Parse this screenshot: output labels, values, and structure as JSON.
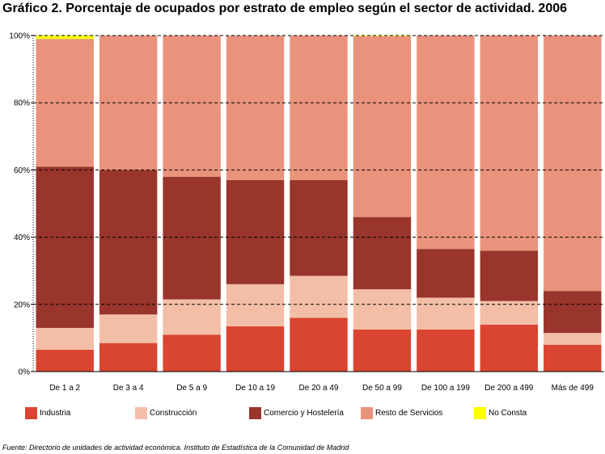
{
  "title": "Gráfico 2. Porcentaje de ocupados por estrato de empleo según el sector de actividad. 2006",
  "source": "Fuente: Directorio de unidades de actividad económica. Instituto de Estadística de la Comunidad de Madrid",
  "chart_data": {
    "type": "bar",
    "stacked": true,
    "percent": true,
    "categories": [
      "De 1 a 2",
      "De 3 a 4",
      "De 5 a 9",
      "De 10 a 19",
      "De 20 a 49",
      "De 50 a 99",
      "De 100 a 199",
      "De 200 a 499",
      "Más de 499"
    ],
    "series": [
      {
        "name": "Industria",
        "color": "#d94530",
        "values": [
          6.5,
          8.5,
          11,
          13.5,
          16,
          12.5,
          12.5,
          14,
          8
        ]
      },
      {
        "name": "Construcción",
        "color": "#f3bea7",
        "values": [
          6.5,
          8.5,
          10.5,
          12.5,
          12.5,
          12,
          9.5,
          7,
          3.5
        ]
      },
      {
        "name": "Comercio y Hostelería",
        "color": "#99352b",
        "values": [
          48,
          43,
          36.5,
          31,
          28.5,
          21.5,
          14.5,
          15,
          12.5
        ]
      },
      {
        "name": "Resto de Servicios",
        "color": "#e9937c",
        "values": [
          38,
          40,
          42,
          43,
          43,
          53.8,
          63.5,
          64,
          76
        ]
      },
      {
        "name": "No Consta",
        "color": "#ffff00",
        "values": [
          1,
          0,
          0,
          0,
          0,
          0.2,
          0,
          0,
          0
        ]
      }
    ],
    "y_ticks": [
      "0%",
      "20%",
      "40%",
      "60%",
      "80%",
      "100%"
    ],
    "ylim": [
      0,
      100
    ],
    "grid": "horizontal-dashed",
    "legend_position": "bottom"
  }
}
